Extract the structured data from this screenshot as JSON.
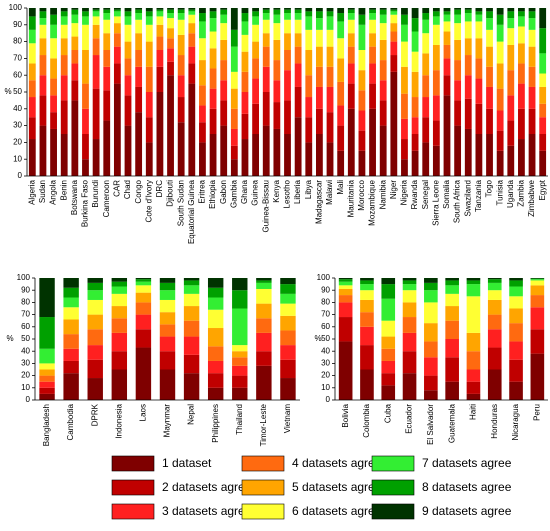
{
  "chart_data": [
    {
      "type": "bar",
      "stacked": true,
      "y_label": "%",
      "ylim": [
        0,
        100
      ],
      "yticks": [
        0,
        10,
        20,
        30,
        40,
        50,
        60,
        70,
        80,
        90,
        100
      ],
      "categories": [
        "Algeria",
        "Sudan",
        "Angola",
        "Benin",
        "Botswana",
        "Burkina Faso",
        "Burundi",
        "Cameroon",
        "CAR",
        "Chad",
        "Congo",
        "Cote d'Ivory",
        "DRC",
        "Djibouti",
        "South Sudan",
        "Equatorial Guinea",
        "Eritrea",
        "Ethiopia",
        "Gabon",
        "Gambia",
        "Ghana",
        "Guinea",
        "Guinea-Bissau",
        "Kenya",
        "Lesotho",
        "Liberia",
        "Libya",
        "Madagascar",
        "Malawi",
        "Mali",
        "Mauritania",
        "Morocco",
        "Mozambique",
        "Namibia",
        "Niger",
        "Nigeria",
        "Rwanda",
        "Senegal",
        "Sierra Leone",
        "Somalia",
        "South Africa",
        "Swaziland",
        "Tanzania",
        "Togo",
        "Tunisia",
        "Uganda",
        "Zambia",
        "Zimbabwe",
        "Egypt"
      ],
      "series": [
        {
          "name": "1 dataset",
          "color": "#7f0000",
          "values": [
            22,
            30,
            28,
            25,
            45,
            10,
            22,
            33,
            55,
            30,
            38,
            20,
            50,
            60,
            32,
            55,
            20,
            25,
            30,
            10,
            22,
            25,
            30,
            28,
            25,
            35,
            20,
            25,
            20,
            15,
            40,
            15,
            40,
            30,
            62,
            10,
            15,
            20,
            18,
            48,
            30,
            28,
            25,
            25,
            15,
            18,
            22,
            25,
            15
          ]
        },
        {
          "name": "2 datasets agree",
          "color": "#c00000",
          "values": [
            13,
            18,
            10,
            20,
            12,
            15,
            30,
            18,
            12,
            18,
            15,
            15,
            15,
            8,
            15,
            12,
            12,
            15,
            15,
            8,
            15,
            18,
            20,
            16,
            20,
            18,
            15,
            15,
            18,
            15,
            15,
            12,
            15,
            15,
            10,
            12,
            10,
            15,
            15,
            12,
            15,
            18,
            18,
            15,
            12,
            15,
            18,
            15,
            10
          ]
        },
        {
          "name": "3 datasets agree",
          "color": "#ff2020",
          "values": [
            12,
            12,
            10,
            15,
            10,
            15,
            20,
            14,
            10,
            12,
            12,
            15,
            10,
            8,
            13,
            10,
            10,
            12,
            12,
            10,
            13,
            15,
            15,
            13,
            18,
            14,
            12,
            13,
            15,
            12,
            12,
            12,
            12,
            12,
            8,
            12,
            10,
            12,
            15,
            10,
            12,
            14,
            15,
            13,
            12,
            15,
            15,
            13,
            10
          ]
        },
        {
          "name": "4 datasets agree",
          "color": "#ff6a10",
          "values": [
            10,
            12,
            10,
            12,
            8,
            15,
            10,
            10,
            8,
            10,
            10,
            15,
            8,
            6,
            12,
            8,
            12,
            12,
            12,
            12,
            12,
            12,
            12,
            12,
            12,
            10,
            13,
            12,
            12,
            14,
            10,
            12,
            10,
            12,
            6,
            15,
            12,
            13,
            15,
            8,
            12,
            12,
            12,
            12,
            13,
            15,
            12,
            12,
            8
          ]
        },
        {
          "name": "5 datasets agree",
          "color": "#ffa500",
          "values": [
            10,
            10,
            12,
            10,
            8,
            20,
            8,
            10,
            6,
            10,
            10,
            15,
            7,
            6,
            12,
            6,
            15,
            12,
            12,
            12,
            12,
            10,
            8,
            12,
            10,
            8,
            15,
            12,
            12,
            14,
            8,
            12,
            8,
            12,
            5,
            16,
            15,
            13,
            15,
            8,
            12,
            10,
            12,
            12,
            15,
            15,
            12,
            12,
            10
          ]
        },
        {
          "name": "6 datasets agree",
          "color": "#ffff33",
          "values": [
            12,
            8,
            12,
            8,
            8,
            15,
            5,
            8,
            4,
            10,
            8,
            10,
            5,
            6,
            9,
            5,
            13,
            10,
            10,
            10,
            10,
            10,
            8,
            10,
            8,
            8,
            12,
            10,
            10,
            12,
            8,
            12,
            8,
            10,
            5,
            15,
            12,
            12,
            12,
            6,
            10,
            10,
            10,
            10,
            13,
            10,
            10,
            10,
            8
          ]
        },
        {
          "name": "7 datasets agree",
          "color": "#33ee33",
          "values": [
            8,
            4,
            8,
            5,
            5,
            5,
            3,
            4,
            3,
            5,
            4,
            5,
            3,
            3,
            4,
            2,
            10,
            8,
            5,
            15,
            8,
            5,
            4,
            5,
            4,
            4,
            8,
            7,
            8,
            10,
            4,
            15,
            4,
            5,
            2,
            10,
            12,
            8,
            5,
            4,
            5,
            5,
            4,
            7,
            10,
            6,
            6,
            7,
            12
          ]
        },
        {
          "name": "8 datasets agree",
          "color": "#00a000",
          "values": [
            8,
            4,
            6,
            3,
            3,
            3,
            1,
            2,
            1,
            3,
            2,
            3,
            1,
            2,
            2,
            1,
            5,
            4,
            3,
            10,
            5,
            3,
            2,
            3,
            2,
            2,
            3,
            4,
            3,
            5,
            2,
            6,
            2,
            3,
            1,
            6,
            8,
            4,
            3,
            2,
            3,
            2,
            2,
            4,
            6,
            4,
            3,
            4,
            15
          ]
        },
        {
          "name": "9 datasets agree",
          "color": "#003300",
          "values": [
            5,
            2,
            4,
            2,
            1,
            2,
            1,
            1,
            1,
            2,
            1,
            2,
            1,
            1,
            1,
            1,
            3,
            2,
            1,
            13,
            3,
            2,
            1,
            1,
            1,
            1,
            2,
            2,
            2,
            3,
            1,
            4,
            1,
            1,
            1,
            4,
            6,
            3,
            2,
            2,
            1,
            1,
            2,
            2,
            4,
            2,
            2,
            2,
            12
          ]
        }
      ]
    },
    {
      "type": "bar",
      "stacked": true,
      "y_label": "%",
      "ylim": [
        0,
        100
      ],
      "yticks": [
        0,
        10,
        20,
        30,
        40,
        50,
        60,
        70,
        80,
        90,
        100
      ],
      "categories": [
        "Bangladesh",
        "Cambodia",
        "DPRK",
        "Indonesia",
        "Laos",
        "Maynmar",
        "Nepal",
        "Philippines",
        "Thailand",
        "Timor-Leste",
        "Vietnam"
      ],
      "series": [
        {
          "values": [
            5,
            22,
            18,
            25,
            43,
            25,
            22,
            10,
            10,
            28,
            18
          ]
        },
        {
          "values": [
            5,
            10,
            15,
            15,
            15,
            15,
            15,
            12,
            10,
            12,
            15
          ]
        },
        {
          "values": [
            5,
            10,
            12,
            15,
            12,
            12,
            15,
            10,
            8,
            15,
            12
          ]
        },
        {
          "values": [
            5,
            12,
            13,
            12,
            10,
            10,
            13,
            12,
            7,
            12,
            12
          ]
        },
        {
          "values": [
            5,
            12,
            12,
            10,
            8,
            10,
            12,
            15,
            5,
            12,
            12
          ]
        },
        {
          "values": [
            5,
            10,
            12,
            10,
            6,
            10,
            10,
            15,
            5,
            12,
            10
          ]
        },
        {
          "values": [
            12,
            8,
            8,
            6,
            3,
            8,
            7,
            10,
            30,
            5,
            8
          ]
        },
        {
          "values": [
            26,
            8,
            6,
            4,
            2,
            6,
            4,
            8,
            15,
            2,
            8
          ]
        },
        {
          "values": [
            32,
            8,
            4,
            3,
            1,
            4,
            2,
            8,
            10,
            2,
            5
          ]
        }
      ]
    },
    {
      "type": "bar",
      "stacked": true,
      "y_label": "%",
      "ylim": [
        0,
        100
      ],
      "yticks": [
        0,
        10,
        20,
        30,
        40,
        50,
        60,
        70,
        80,
        90,
        100
      ],
      "categories": [
        "Bolivia",
        "Colombia",
        "Cuba",
        "Ecuador",
        "El Salvador",
        "Guatemala",
        "Haiti",
        "Honduras",
        "Nicaragua",
        "Peru"
      ],
      "series": [
        {
          "values": [
            48,
            25,
            12,
            22,
            8,
            15,
            5,
            25,
            15,
            38
          ]
        },
        {
          "values": [
            20,
            20,
            10,
            18,
            12,
            20,
            10,
            18,
            18,
            20
          ]
        },
        {
          "values": [
            12,
            15,
            10,
            15,
            15,
            15,
            10,
            15,
            15,
            18
          ]
        },
        {
          "values": [
            6,
            12,
            10,
            13,
            13,
            15,
            15,
            12,
            15,
            10
          ]
        },
        {
          "values": [
            5,
            10,
            10,
            12,
            15,
            12,
            15,
            12,
            12,
            8
          ]
        },
        {
          "values": [
            3,
            8,
            13,
            10,
            17,
            10,
            30,
            8,
            10,
            4
          ]
        },
        {
          "values": [
            3,
            5,
            18,
            5,
            10,
            7,
            10,
            6,
            8,
            1
          ]
        },
        {
          "values": [
            2,
            3,
            12,
            3,
            6,
            4,
            3,
            3,
            5,
            0.5
          ]
        },
        {
          "values": [
            1,
            2,
            5,
            2,
            4,
            2,
            2,
            1,
            2,
            0.5
          ]
        }
      ]
    }
  ]
}
